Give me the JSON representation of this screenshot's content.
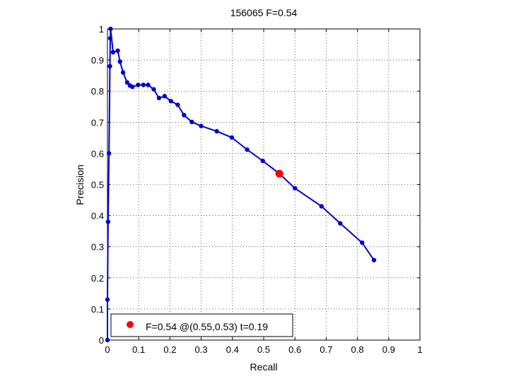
{
  "chart_data": {
    "type": "line",
    "title": "156065 F=0.54",
    "xlabel": "Recall",
    "ylabel": "Precision",
    "xlim": [
      0,
      1
    ],
    "ylim": [
      0,
      1
    ],
    "grid": true,
    "xticks": [
      "0",
      "0.1",
      "0.2",
      "0.3",
      "0.4",
      "0.5",
      "0.6",
      "0.7",
      "0.8",
      "0.9",
      "1"
    ],
    "yticks": [
      "0",
      "0.1",
      "0.2",
      "0.3",
      "0.4",
      "0.5",
      "0.6",
      "0.7",
      "0.8",
      "0.9",
      "1"
    ],
    "series": [
      {
        "color": "#0000cc",
        "points": [
          [
            0.0,
            0.0
          ],
          [
            0.0,
            0.13
          ],
          [
            0.002,
            0.38
          ],
          [
            0.005,
            0.6
          ],
          [
            0.008,
            0.88
          ],
          [
            0.009,
            0.97
          ],
          [
            0.01,
            1.0
          ],
          [
            0.018,
            0.925
          ],
          [
            0.033,
            0.93
          ],
          [
            0.04,
            0.895
          ],
          [
            0.05,
            0.86
          ],
          [
            0.063,
            0.828
          ],
          [
            0.072,
            0.818
          ],
          [
            0.08,
            0.814
          ],
          [
            0.098,
            0.82
          ],
          [
            0.115,
            0.82
          ],
          [
            0.13,
            0.82
          ],
          [
            0.148,
            0.806
          ],
          [
            0.165,
            0.778
          ],
          [
            0.183,
            0.784
          ],
          [
            0.203,
            0.768
          ],
          [
            0.225,
            0.756
          ],
          [
            0.245,
            0.723
          ],
          [
            0.27,
            0.701
          ],
          [
            0.3,
            0.688
          ],
          [
            0.35,
            0.671
          ],
          [
            0.398,
            0.651
          ],
          [
            0.447,
            0.612
          ],
          [
            0.497,
            0.576
          ],
          [
            0.55,
            0.535
          ],
          [
            0.6,
            0.488
          ],
          [
            0.685,
            0.43
          ],
          [
            0.745,
            0.375
          ],
          [
            0.815,
            0.313
          ],
          [
            0.853,
            0.257
          ]
        ]
      }
    ],
    "highlight": {
      "x": 0.55,
      "y": 0.535,
      "color": "#ff0000"
    },
    "legend": {
      "position": "bottom-left",
      "marker_color": "#ff0000",
      "label": "F=0.54 @(0.55,0.53) t=0.19"
    }
  }
}
